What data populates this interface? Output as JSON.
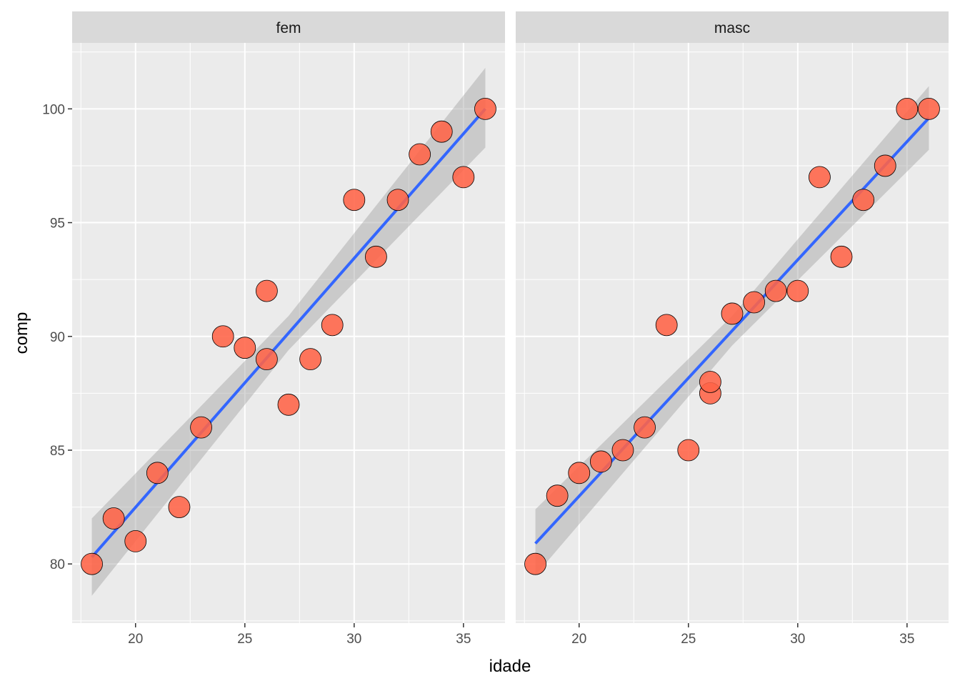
{
  "chart_data": {
    "type": "scatter",
    "xlabel": "idade",
    "ylabel": "comp",
    "xlim": [
      17.1,
      36.9
    ],
    "ylim": [
      77.4,
      102.9
    ],
    "x_ticks": [
      20,
      25,
      30,
      35
    ],
    "y_ticks": [
      80,
      85,
      90,
      95,
      100
    ],
    "x_tick_labels": [
      "20",
      "25",
      "30",
      "35"
    ],
    "y_tick_labels": [
      "80",
      "85",
      "90",
      "95",
      "100"
    ],
    "grid": true,
    "point_color": "#FF6347",
    "line_color": "#3366FF",
    "band_color": "#999999",
    "panels": [
      {
        "label": "fem",
        "points": [
          [
            18,
            80
          ],
          [
            19,
            82
          ],
          [
            20,
            81
          ],
          [
            21,
            84
          ],
          [
            22,
            82.5
          ],
          [
            23,
            86
          ],
          [
            24,
            90
          ],
          [
            25,
            89.5
          ],
          [
            26,
            92
          ],
          [
            26,
            89
          ],
          [
            27,
            87
          ],
          [
            28,
            89
          ],
          [
            29,
            90.5
          ],
          [
            30,
            96
          ],
          [
            31,
            93.5
          ],
          [
            32,
            96
          ],
          [
            33,
            98
          ],
          [
            34,
            99
          ],
          [
            35,
            97
          ],
          [
            36,
            100
          ]
        ],
        "fit": {
          "x0": 18,
          "x1": 36,
          "y0": 80.3,
          "y1": 100
        },
        "band": [
          [
            18,
            78.6,
            82.0
          ],
          [
            27,
            89.4,
            90.9
          ],
          [
            36,
            98.3,
            101.8
          ]
        ]
      },
      {
        "label": "masc",
        "points": [
          [
            18,
            80
          ],
          [
            19,
            83
          ],
          [
            20,
            84
          ],
          [
            21,
            84.5
          ],
          [
            22,
            85
          ],
          [
            23,
            86
          ],
          [
            24,
            90.5
          ],
          [
            25,
            85
          ],
          [
            26,
            87.5
          ],
          [
            26,
            88
          ],
          [
            27,
            91
          ],
          [
            28,
            91.5
          ],
          [
            29,
            92
          ],
          [
            30,
            92
          ],
          [
            31,
            97
          ],
          [
            32,
            93.5
          ],
          [
            33,
            96
          ],
          [
            34,
            97.5
          ],
          [
            35,
            100
          ],
          [
            36,
            100
          ]
        ],
        "fit": {
          "x0": 18,
          "x1": 36,
          "y0": 80.9,
          "y1": 99.6
        },
        "band": [
          [
            18,
            79.5,
            82.4
          ],
          [
            27,
            89.6,
            90.9
          ],
          [
            36,
            98.2,
            101
          ]
        ]
      }
    ]
  }
}
